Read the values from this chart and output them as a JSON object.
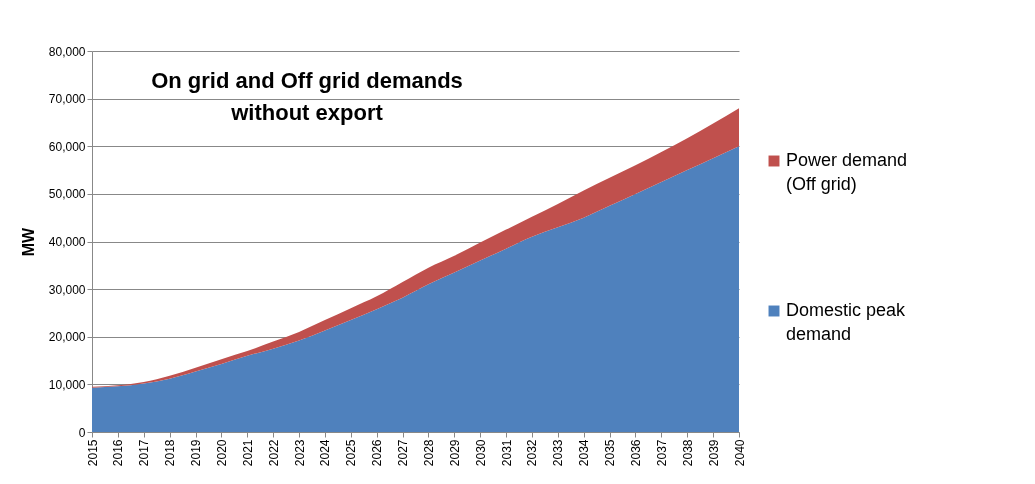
{
  "chart_data": {
    "type": "area",
    "stacked": true,
    "title": "On grid  and Off grid demands\nwithout  export",
    "ylabel": "MW",
    "categories": [
      "2015",
      "2016",
      "2017",
      "2018",
      "2019",
      "2020",
      "2021",
      "2022",
      "2023",
      "2024",
      "2025",
      "2026",
      "2027",
      "2028",
      "2029",
      "2030",
      "2031",
      "2032",
      "2033",
      "2034",
      "2035",
      "2036",
      "2037",
      "2038",
      "2039",
      "2040"
    ],
    "series": [
      {
        "name": "Domestic peak demand",
        "color": "#4f81bd",
        "values": [
          9300,
          9600,
          10200,
          11200,
          12700,
          14300,
          16000,
          17500,
          19200,
          21300,
          23500,
          25800,
          28200,
          31000,
          33500,
          36000,
          38500,
          41000,
          43000,
          45000,
          47500,
          50000,
          52500,
          55000,
          57500,
          60000
        ]
      },
      {
        "name": "Power demand (Off grid)",
        "color": "#c0504d",
        "values": [
          200,
          200,
          300,
          600,
          800,
          1000,
          1000,
          1500,
          1800,
          2200,
          2500,
          2700,
          3300,
          3500,
          3500,
          3800,
          4000,
          4200,
          4900,
          5700,
          5900,
          6000,
          6300,
          6700,
          7300,
          8000
        ]
      }
    ],
    "ylim": [
      0,
      80000
    ],
    "yticks": [
      {
        "value": 0,
        "label": "0"
      },
      {
        "value": 10000,
        "label": "10,000"
      },
      {
        "value": 20000,
        "label": "20,000"
      },
      {
        "value": 30000,
        "label": "30,000"
      },
      {
        "value": 40000,
        "label": "40,000"
      },
      {
        "value": 50000,
        "label": "50,000"
      },
      {
        "value": 60000,
        "label": "60,000"
      },
      {
        "value": 70000,
        "label": "70,000"
      },
      {
        "value": 80000,
        "label": "80,000"
      }
    ],
    "grid": "y",
    "legend": "right"
  }
}
